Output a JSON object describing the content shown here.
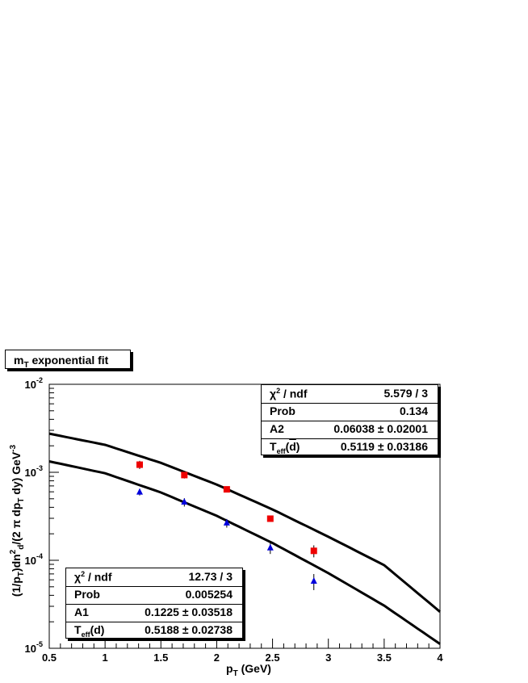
{
  "chart_data": {
    "type": "scatter",
    "title": "m_T exponential fit",
    "xlabel": "p_T (GeV)",
    "ylabel": "(1/p_T)dn_d^2/(2 π dp_T dy) GeV^-3",
    "xlim": [
      0.5,
      4.0
    ],
    "ylim": [
      1e-05,
      0.01
    ],
    "y_scale": "log",
    "x_ticks": [
      "0.5",
      "1",
      "1.5",
      "2",
      "2.5",
      "3",
      "3.5",
      "4"
    ],
    "y_ticks": [
      "10^-5",
      "10^-4",
      "10^-3",
      "10^-2"
    ],
    "series": [
      {
        "marker": "square",
        "color": "#ee0000",
        "x": [
          1.31,
          1.71,
          2.09,
          2.48,
          2.87
        ],
        "y": [
          0.00122,
          0.00093,
          0.00064,
          0.000297,
          0.000128
        ],
        "yerr": [
          0.00013,
          8e-05,
          5e-05,
          2e-05,
          2e-05
        ]
      },
      {
        "marker": "triangle",
        "color": "#0000dd",
        "x": [
          1.31,
          1.71,
          2.09,
          2.48,
          2.87
        ],
        "y": [
          0.000595,
          0.000458,
          0.000265,
          0.000138,
          5.78e-05
        ],
        "yerr": [
          5e-05,
          5e-05,
          3e-05,
          2e-05,
          1.2e-05
        ]
      }
    ],
    "fit_curves": [
      {
        "color": "#000000",
        "x": [
          0.5,
          1.0,
          1.5,
          2.0,
          2.5,
          3.0,
          3.5,
          4.0
        ],
        "y": [
          0.00275,
          0.00205,
          0.00128,
          0.000725,
          0.000378,
          0.000185,
          8.8e-05,
          2.6e-05
        ]
      },
      {
        "color": "#000000",
        "x": [
          0.5,
          1.0,
          1.5,
          2.0,
          2.5,
          3.0,
          3.5,
          4.0
        ],
        "y": [
          0.00133,
          0.000975,
          0.00059,
          0.00032,
          0.000157,
          7.15e-05,
          3.05e-05,
          1.12e-05
        ]
      }
    ],
    "stats_top": [
      {
        "key": "χ² / ndf",
        "value": "5.579 / 3"
      },
      {
        "key": "Prob",
        "value": "0.134"
      },
      {
        "key": "A2",
        "value": "0.06038 ± 0.02001"
      },
      {
        "key": "T_eff(d̄)",
        "value": "0.5119 ± 0.03186"
      }
    ],
    "stats_bottom": [
      {
        "key": "χ² / ndf",
        "value": "12.73 / 3"
      },
      {
        "key": "Prob",
        "value": "0.005254"
      },
      {
        "key": "A1",
        "value": "0.1225 ± 0.03518"
      },
      {
        "key": "T_eff(d)",
        "value": "0.5188 ± 0.02738"
      }
    ]
  }
}
